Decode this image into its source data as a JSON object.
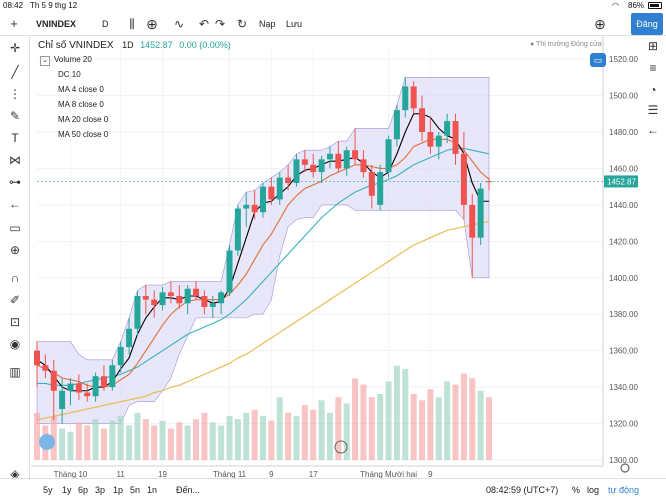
{
  "status_bar": {
    "time": "08:42",
    "date": "Th 5 9 thg 12",
    "battery": "86%"
  },
  "toolbar": {
    "symbol": "VNINDEX",
    "interval": "D",
    "indicators_label": "Nạp",
    "save_label": "Lưu",
    "publish_label": "Đăng"
  },
  "legend": {
    "title": "Chỉ số VNINDEX",
    "interval": "1D",
    "last": "1452.87",
    "change": "0.00 (0.00%)",
    "indicators": [
      "Volume 20",
      "DC 10",
      "MA 4 close 0",
      "MA 8 close 0",
      "MA 20 close 0",
      "MA 50 close 0"
    ]
  },
  "market_status": "Thị trường Đóng cửa",
  "price_axis": {
    "ticks": [
      "1520.00",
      "1500.00",
      "1480.00",
      "1460.00",
      "1440.00",
      "1420.00",
      "1400.00",
      "1380.00",
      "1360.00",
      "1340.00",
      "1320.00",
      "1300.00"
    ],
    "current_price": "1452.87"
  },
  "time_axis": [
    "Tháng 10",
    "11",
    "19",
    "Tháng 11",
    "9",
    "17",
    "Tháng Mười hai",
    "9"
  ],
  "bottom_bar": {
    "ranges": [
      "5y",
      "1y",
      "6p",
      "3p",
      "1p",
      "5n",
      "1n"
    ],
    "goto": "Đến...",
    "clock": "08:42:59 (UTC+7)",
    "percent": "%",
    "log": "log",
    "auto": "tự động"
  },
  "colors": {
    "up": "#26a69a",
    "down": "#ef5350",
    "accent": "#2f80d0",
    "dc_fill": "#d9d5f5",
    "ma4": "#000000",
    "ma8": "#e0703a",
    "ma20": "#38b2c0",
    "ma50": "#e8b84a"
  },
  "chart_data": {
    "type": "candlestick",
    "ylim": [
      1300,
      1525
    ],
    "candles": [
      {
        "o": 1360,
        "h": 1365,
        "l": 1340,
        "c": 1352
      },
      {
        "o": 1352,
        "h": 1358,
        "l": 1345,
        "c": 1349
      },
      {
        "o": 1349,
        "h": 1355,
        "l": 1322,
        "c": 1338
      },
      {
        "o": 1328,
        "h": 1345,
        "l": 1320,
        "c": 1338
      },
      {
        "o": 1338,
        "h": 1345,
        "l": 1330,
        "c": 1342
      },
      {
        "o": 1342,
        "h": 1347,
        "l": 1333,
        "c": 1337
      },
      {
        "o": 1337,
        "h": 1342,
        "l": 1332,
        "c": 1335
      },
      {
        "o": 1335,
        "h": 1348,
        "l": 1332,
        "c": 1346
      },
      {
        "o": 1346,
        "h": 1352,
        "l": 1338,
        "c": 1340
      },
      {
        "o": 1340,
        "h": 1355,
        "l": 1338,
        "c": 1352
      },
      {
        "o": 1352,
        "h": 1365,
        "l": 1348,
        "c": 1362
      },
      {
        "o": 1362,
        "h": 1378,
        "l": 1358,
        "c": 1372
      },
      {
        "o": 1372,
        "h": 1393,
        "l": 1368,
        "c": 1390
      },
      {
        "o": 1390,
        "h": 1396,
        "l": 1380,
        "c": 1388
      },
      {
        "o": 1388,
        "h": 1393,
        "l": 1378,
        "c": 1385
      },
      {
        "o": 1385,
        "h": 1395,
        "l": 1382,
        "c": 1392
      },
      {
        "o": 1392,
        "h": 1398,
        "l": 1386,
        "c": 1390
      },
      {
        "o": 1390,
        "h": 1396,
        "l": 1383,
        "c": 1386
      },
      {
        "o": 1386,
        "h": 1396,
        "l": 1380,
        "c": 1394
      },
      {
        "o": 1394,
        "h": 1398,
        "l": 1388,
        "c": 1390
      },
      {
        "o": 1390,
        "h": 1393,
        "l": 1380,
        "c": 1384
      },
      {
        "o": 1384,
        "h": 1390,
        "l": 1378,
        "c": 1386
      },
      {
        "o": 1386,
        "h": 1393,
        "l": 1380,
        "c": 1392
      },
      {
        "o": 1392,
        "h": 1418,
        "l": 1390,
        "c": 1415
      },
      {
        "o": 1415,
        "h": 1440,
        "l": 1412,
        "c": 1438
      },
      {
        "o": 1438,
        "h": 1447,
        "l": 1428,
        "c": 1440
      },
      {
        "o": 1440,
        "h": 1448,
        "l": 1432,
        "c": 1436
      },
      {
        "o": 1436,
        "h": 1452,
        "l": 1433,
        "c": 1450
      },
      {
        "o": 1450,
        "h": 1455,
        "l": 1440,
        "c": 1443
      },
      {
        "o": 1443,
        "h": 1458,
        "l": 1440,
        "c": 1455
      },
      {
        "o": 1455,
        "h": 1462,
        "l": 1448,
        "c": 1452
      },
      {
        "o": 1452,
        "h": 1468,
        "l": 1450,
        "c": 1465
      },
      {
        "o": 1465,
        "h": 1470,
        "l": 1458,
        "c": 1462
      },
      {
        "o": 1462,
        "h": 1468,
        "l": 1455,
        "c": 1458
      },
      {
        "o": 1458,
        "h": 1467,
        "l": 1452,
        "c": 1465
      },
      {
        "o": 1465,
        "h": 1472,
        "l": 1460,
        "c": 1468
      },
      {
        "o": 1468,
        "h": 1475,
        "l": 1458,
        "c": 1460
      },
      {
        "o": 1460,
        "h": 1472,
        "l": 1456,
        "c": 1470
      },
      {
        "o": 1470,
        "h": 1482,
        "l": 1462,
        "c": 1465
      },
      {
        "o": 1465,
        "h": 1470,
        "l": 1455,
        "c": 1458
      },
      {
        "o": 1458,
        "h": 1462,
        "l": 1438,
        "c": 1445
      },
      {
        "o": 1440,
        "h": 1462,
        "l": 1437,
        "c": 1458
      },
      {
        "o": 1458,
        "h": 1478,
        "l": 1455,
        "c": 1476
      },
      {
        "o": 1476,
        "h": 1495,
        "l": 1472,
        "c": 1492
      },
      {
        "o": 1492,
        "h": 1510,
        "l": 1488,
        "c": 1505
      },
      {
        "o": 1505,
        "h": 1508,
        "l": 1490,
        "c": 1493
      },
      {
        "o": 1493,
        "h": 1500,
        "l": 1475,
        "c": 1480
      },
      {
        "o": 1480,
        "h": 1488,
        "l": 1468,
        "c": 1472
      },
      {
        "o": 1472,
        "h": 1480,
        "l": 1465,
        "c": 1478
      },
      {
        "o": 1478,
        "h": 1490,
        "l": 1474,
        "c": 1486
      },
      {
        "o": 1486,
        "h": 1490,
        "l": 1462,
        "c": 1468
      },
      {
        "o": 1468,
        "h": 1480,
        "l": 1432,
        "c": 1440
      },
      {
        "o": 1440,
        "h": 1446,
        "l": 1400,
        "c": 1422
      },
      {
        "o": 1422,
        "h": 1452,
        "l": 1418,
        "c": 1449
      },
      {
        "o": 1453,
        "h": 1455,
        "l": 1448,
        "c": 1452.87
      }
    ],
    "volume": [
      30,
      22,
      28,
      20,
      18,
      24,
      22,
      26,
      20,
      25,
      28,
      22,
      30,
      26,
      22,
      25,
      20,
      24,
      22,
      26,
      30,
      24,
      22,
      28,
      26,
      30,
      32,
      28,
      25,
      40,
      30,
      28,
      35,
      32,
      38,
      30,
      40,
      36,
      52,
      48,
      40,
      42,
      50,
      60,
      58,
      42,
      38,
      45,
      40,
      50,
      48,
      55,
      52,
      44,
      40
    ],
    "ma4": [
      1355,
      1352,
      1346,
      1340,
      1338,
      1338,
      1338,
      1340,
      1340,
      1343,
      1350,
      1356,
      1369,
      1378,
      1384,
      1389,
      1389,
      1388,
      1390,
      1390,
      1388,
      1386,
      1387,
      1394,
      1408,
      1422,
      1436,
      1441,
      1442,
      1446,
      1450,
      1456,
      1459,
      1460,
      1462,
      1464,
      1464,
      1465,
      1466,
      1463,
      1458,
      1455,
      1458,
      1468,
      1480,
      1490,
      1490,
      1488,
      1482,
      1478,
      1476,
      1468,
      1452,
      1442,
      1442
    ],
    "ma8": [
      1352,
      1350,
      1348,
      1345,
      1344,
      1343,
      1341,
      1340,
      1340,
      1341,
      1344,
      1347,
      1353,
      1360,
      1367,
      1374,
      1380,
      1384,
      1387,
      1388,
      1388,
      1388,
      1388,
      1391,
      1396,
      1402,
      1410,
      1418,
      1424,
      1432,
      1440,
      1445,
      1449,
      1451,
      1453,
      1456,
      1458,
      1460,
      1462,
      1462,
      1461,
      1460,
      1460,
      1462,
      1466,
      1472,
      1474,
      1476,
      1476,
      1476,
      1474,
      1470,
      1464,
      1458,
      1454
    ],
    "ma20": [
      1342,
      1342,
      1341,
      1341,
      1341,
      1342,
      1343,
      1344,
      1345,
      1346,
      1347,
      1349,
      1351,
      1354,
      1357,
      1360,
      1363,
      1366,
      1369,
      1371,
      1373,
      1375,
      1377,
      1380,
      1384,
      1388,
      1393,
      1398,
      1403,
      1408,
      1413,
      1418,
      1423,
      1428,
      1433,
      1437,
      1441,
      1444,
      1447,
      1449,
      1451,
      1452,
      1454,
      1456,
      1459,
      1462,
      1464,
      1466,
      1468,
      1470,
      1471,
      1471,
      1470,
      1469,
      1468
    ],
    "ma50": [
      1322,
      1323,
      1324,
      1325,
      1326,
      1327,
      1328,
      1329,
      1330,
      1331,
      1332,
      1333,
      1334,
      1335,
      1337,
      1338,
      1340,
      1341,
      1343,
      1345,
      1347,
      1349,
      1351,
      1353,
      1356,
      1358,
      1361,
      1364,
      1367,
      1370,
      1373,
      1376,
      1379,
      1382,
      1385,
      1388,
      1391,
      1394,
      1397,
      1400,
      1403,
      1406,
      1409,
      1412,
      1415,
      1418,
      1420,
      1422,
      1424,
      1426,
      1427,
      1428,
      1429,
      1430,
      1431
    ],
    "dc_upper": [
      1365,
      1365,
      1365,
      1365,
      1365,
      1358,
      1355,
      1355,
      1355,
      1355,
      1365,
      1378,
      1393,
      1396,
      1396,
      1396,
      1398,
      1398,
      1398,
      1398,
      1398,
      1398,
      1398,
      1418,
      1440,
      1447,
      1448,
      1452,
      1455,
      1458,
      1462,
      1468,
      1470,
      1470,
      1470,
      1472,
      1475,
      1475,
      1482,
      1482,
      1482,
      1482,
      1482,
      1495,
      1510,
      1510,
      1510,
      1510,
      1510,
      1510,
      1510,
      1510,
      1510,
      1510,
      1510
    ],
    "dc_lower": [
      1320,
      1320,
      1320,
      1320,
      1320,
      1320,
      1320,
      1320,
      1320,
      1320,
      1320,
      1330,
      1332,
      1332,
      1332,
      1338,
      1345,
      1358,
      1368,
      1378,
      1378,
      1378,
      1378,
      1378,
      1378,
      1378,
      1380,
      1380,
      1388,
      1412,
      1428,
      1432,
      1433,
      1433,
      1440,
      1440,
      1440,
      1440,
      1437,
      1437,
      1437,
      1437,
      1437,
      1437,
      1437,
      1437,
      1437,
      1437,
      1437,
      1437,
      1437,
      1432,
      1400,
      1400,
      1400
    ]
  }
}
